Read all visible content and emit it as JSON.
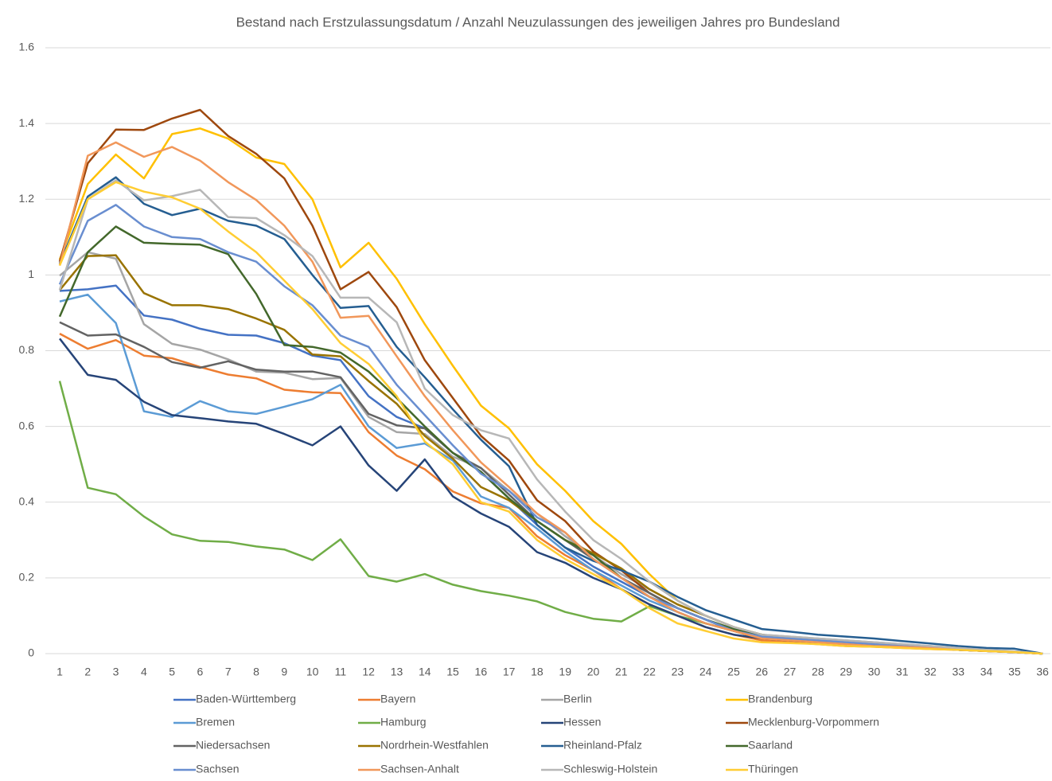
{
  "chart_data": {
    "type": "line",
    "title": "Bestand nach Erstzulassungsdatum / Anzahl Neuzulassungen des jeweiligen Jahres pro Bundesland",
    "categories": [
      "1",
      "2",
      "3",
      "4",
      "5",
      "6",
      "7",
      "8",
      "9",
      "10",
      "11",
      "12",
      "13",
      "14",
      "15",
      "16",
      "17",
      "18",
      "19",
      "20",
      "21",
      "22",
      "23",
      "24",
      "25",
      "26",
      "27",
      "28",
      "29",
      "30",
      "31",
      "32",
      "33",
      "34",
      "35",
      "36"
    ],
    "ylim": [
      0,
      1.6
    ],
    "yticks": [
      0,
      0.2,
      0.4,
      0.6,
      0.8,
      1,
      1.2,
      1.4,
      1.6
    ],
    "grid": true,
    "legend": "bottom",
    "series": [
      {
        "name": "Baden-Württemberg",
        "color": "#4472c4",
        "values": [
          0.958,
          0.962,
          0.972,
          0.893,
          0.882,
          0.858,
          0.842,
          0.84,
          0.82,
          0.787,
          0.775,
          0.68,
          0.625,
          0.595,
          0.53,
          0.48,
          0.41,
          0.34,
          0.28,
          0.23,
          0.19,
          0.15,
          0.11,
          0.08,
          0.06,
          0.045,
          0.04,
          0.035,
          0.03,
          0.025,
          0.02,
          0.015,
          0.01,
          0.008,
          0.005,
          0
        ]
      },
      {
        "name": "Bayern",
        "color": "#ed7d31",
        "values": [
          0.845,
          0.805,
          0.828,
          0.787,
          0.78,
          0.757,
          0.737,
          0.727,
          0.697,
          0.69,
          0.688,
          0.585,
          0.523,
          0.487,
          0.428,
          0.397,
          0.385,
          0.31,
          0.26,
          0.22,
          0.17,
          0.13,
          0.1,
          0.07,
          0.05,
          0.035,
          0.03,
          0.025,
          0.02,
          0.018,
          0.015,
          0.012,
          0.01,
          0.007,
          0.004,
          0
        ]
      },
      {
        "name": "Berlin",
        "color": "#a5a5a5",
        "values": [
          0.998,
          1.06,
          1.043,
          0.87,
          0.818,
          0.803,
          0.777,
          0.745,
          0.742,
          0.725,
          0.728,
          0.625,
          0.585,
          0.58,
          0.52,
          0.49,
          0.43,
          0.37,
          0.31,
          0.26,
          0.21,
          0.17,
          0.13,
          0.1,
          0.07,
          0.05,
          0.045,
          0.04,
          0.035,
          0.03,
          0.025,
          0.02,
          0.015,
          0.01,
          0.006,
          0
        ]
      },
      {
        "name": "Brandenburg",
        "color": "#ffc000",
        "values": [
          1.04,
          1.24,
          1.318,
          1.255,
          1.372,
          1.387,
          1.36,
          1.31,
          1.293,
          1.2,
          1.02,
          1.085,
          0.99,
          0.87,
          0.76,
          0.655,
          0.595,
          0.5,
          0.43,
          0.35,
          0.29,
          0.21,
          0.14,
          0.1,
          0.07,
          0.05,
          0.04,
          0.035,
          0.03,
          0.025,
          0.02,
          0.015,
          0.01,
          0.008,
          0.005,
          0
        ]
      },
      {
        "name": "Bremen",
        "color": "#5b9bd5",
        "values": [
          0.93,
          0.948,
          0.873,
          0.64,
          0.625,
          0.667,
          0.64,
          0.633,
          0.652,
          0.672,
          0.71,
          0.6,
          0.543,
          0.555,
          0.51,
          0.415,
          0.385,
          0.33,
          0.27,
          0.22,
          0.18,
          0.14,
          0.11,
          0.08,
          0.06,
          0.04,
          0.035,
          0.03,
          0.025,
          0.02,
          0.018,
          0.015,
          0.01,
          0.007,
          0.004,
          0
        ]
      },
      {
        "name": "Hamburg",
        "color": "#70ad47",
        "values": [
          0.72,
          0.438,
          0.421,
          0.362,
          0.315,
          0.298,
          0.295,
          0.283,
          0.275,
          0.247,
          0.302,
          0.205,
          0.19,
          0.21,
          0.182,
          0.165,
          0.153,
          0.138,
          0.11,
          0.092,
          0.085,
          0.125,
          0.1,
          0.08,
          0.06,
          0.04,
          0.035,
          0.03,
          0.025,
          0.02,
          0.018,
          0.015,
          0.01,
          0.007,
          0.004,
          0
        ]
      },
      {
        "name": "Hessen",
        "color": "#264478",
        "values": [
          0.832,
          0.736,
          0.723,
          0.665,
          0.63,
          0.622,
          0.613,
          0.607,
          0.58,
          0.55,
          0.6,
          0.497,
          0.43,
          0.513,
          0.415,
          0.37,
          0.335,
          0.268,
          0.24,
          0.2,
          0.17,
          0.13,
          0.1,
          0.07,
          0.05,
          0.04,
          0.035,
          0.03,
          0.025,
          0.02,
          0.018,
          0.015,
          0.01,
          0.007,
          0.004,
          0
        ]
      },
      {
        "name": "Mecklenburg-Vorpommern",
        "color": "#9e480e",
        "values": [
          1.035,
          1.295,
          1.384,
          1.383,
          1.413,
          1.436,
          1.367,
          1.32,
          1.255,
          1.13,
          0.962,
          1.008,
          0.915,
          0.775,
          0.675,
          0.575,
          0.51,
          0.405,
          0.35,
          0.27,
          0.22,
          0.16,
          0.12,
          0.09,
          0.06,
          0.04,
          0.035,
          0.03,
          0.025,
          0.02,
          0.018,
          0.015,
          0.01,
          0.007,
          0.004,
          0
        ]
      },
      {
        "name": "Niedersachsen",
        "color": "#636363",
        "values": [
          0.875,
          0.84,
          0.843,
          0.81,
          0.77,
          0.755,
          0.772,
          0.75,
          0.745,
          0.745,
          0.73,
          0.633,
          0.603,
          0.595,
          0.53,
          0.49,
          0.42,
          0.35,
          0.3,
          0.25,
          0.2,
          0.16,
          0.12,
          0.09,
          0.06,
          0.045,
          0.04,
          0.035,
          0.03,
          0.025,
          0.02,
          0.015,
          0.01,
          0.008,
          0.005,
          0
        ]
      },
      {
        "name": "Nordrhein-Westfahlen",
        "color": "#997300",
        "values": [
          0.96,
          1.05,
          1.052,
          0.952,
          0.92,
          0.92,
          0.91,
          0.885,
          0.855,
          0.79,
          0.785,
          0.72,
          0.66,
          0.575,
          0.515,
          0.44,
          0.405,
          0.35,
          0.3,
          0.265,
          0.225,
          0.17,
          0.13,
          0.1,
          0.07,
          0.05,
          0.04,
          0.035,
          0.03,
          0.025,
          0.02,
          0.015,
          0.01,
          0.008,
          0.005,
          0
        ]
      },
      {
        "name": "Rheinland-Pfalz",
        "color": "#255e91",
        "values": [
          1.03,
          1.207,
          1.258,
          1.188,
          1.158,
          1.175,
          1.143,
          1.13,
          1.095,
          1.0,
          0.913,
          0.918,
          0.81,
          0.73,
          0.645,
          0.565,
          0.495,
          0.34,
          0.28,
          0.245,
          0.22,
          0.19,
          0.15,
          0.115,
          0.09,
          0.065,
          0.058,
          0.05,
          0.045,
          0.04,
          0.033,
          0.027,
          0.02,
          0.015,
          0.013,
          0
        ]
      },
      {
        "name": "Saarland",
        "color": "#43682b",
        "values": [
          0.89,
          1.06,
          1.128,
          1.085,
          1.082,
          1.08,
          1.055,
          0.95,
          0.815,
          0.81,
          0.795,
          0.745,
          0.675,
          0.6,
          0.53,
          0.48,
          0.41,
          0.35,
          0.3,
          0.26,
          0.2,
          0.15,
          0.12,
          0.09,
          0.065,
          0.05,
          0.04,
          0.035,
          0.03,
          0.025,
          0.02,
          0.015,
          0.01,
          0.008,
          0.005,
          0
        ]
      },
      {
        "name": "Sachsen",
        "color": "#698ed0",
        "values": [
          0.975,
          1.143,
          1.185,
          1.128,
          1.1,
          1.095,
          1.06,
          1.035,
          0.97,
          0.92,
          0.84,
          0.81,
          0.71,
          0.63,
          0.55,
          0.475,
          0.43,
          0.36,
          0.32,
          0.25,
          0.2,
          0.15,
          0.12,
          0.09,
          0.06,
          0.045,
          0.04,
          0.035,
          0.03,
          0.025,
          0.02,
          0.015,
          0.01,
          0.008,
          0.005,
          0
        ]
      },
      {
        "name": "Sachsen-Anhalt",
        "color": "#f1975a",
        "values": [
          1.025,
          1.315,
          1.35,
          1.312,
          1.338,
          1.302,
          1.245,
          1.198,
          1.13,
          1.035,
          0.887,
          0.892,
          0.785,
          0.68,
          0.59,
          0.505,
          0.44,
          0.37,
          0.32,
          0.25,
          0.2,
          0.15,
          0.11,
          0.08,
          0.06,
          0.04,
          0.035,
          0.03,
          0.025,
          0.02,
          0.018,
          0.015,
          0.01,
          0.007,
          0.004,
          0
        ]
      },
      {
        "name": "Schleswig-Holstein",
        "color": "#b7b7b7",
        "values": [
          0.96,
          1.2,
          1.25,
          1.197,
          1.208,
          1.225,
          1.153,
          1.15,
          1.105,
          1.05,
          0.94,
          0.94,
          0.875,
          0.7,
          0.63,
          0.59,
          0.568,
          0.46,
          0.375,
          0.3,
          0.25,
          0.19,
          0.14,
          0.1,
          0.07,
          0.05,
          0.045,
          0.04,
          0.035,
          0.03,
          0.025,
          0.02,
          0.015,
          0.01,
          0.006,
          0
        ]
      },
      {
        "name": "Thüringen",
        "color": "#ffcd33",
        "values": [
          1.025,
          1.2,
          1.245,
          1.22,
          1.205,
          1.175,
          1.115,
          1.06,
          0.985,
          0.91,
          0.82,
          0.765,
          0.68,
          0.56,
          0.5,
          0.4,
          0.375,
          0.3,
          0.25,
          0.21,
          0.17,
          0.12,
          0.08,
          0.06,
          0.04,
          0.03,
          0.028,
          0.025,
          0.02,
          0.018,
          0.015,
          0.012,
          0.01,
          0.007,
          0.004,
          0
        ]
      }
    ]
  }
}
